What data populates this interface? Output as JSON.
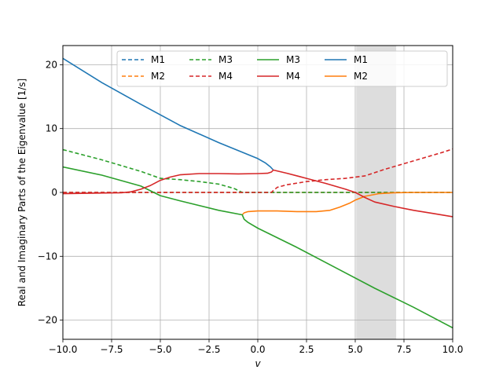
{
  "chart_data": {
    "type": "line",
    "xlabel": "v",
    "ylabel": "Real and Imaginary Parts of the Eigenvalue [1/s]",
    "xlim": [
      -10,
      10
    ],
    "ylim": [
      -23,
      23
    ],
    "xticks": [
      -10,
      -7.5,
      -5,
      -2.5,
      0,
      2.5,
      5,
      7.5,
      10
    ],
    "xtick_labels": [
      "−10.0",
      "−7.5",
      "−5.0",
      "−2.5",
      "0.0",
      "2.5",
      "5.0",
      "7.5",
      "10.0"
    ],
    "yticks": [
      -20,
      -10,
      0,
      10,
      20
    ],
    "ytick_labels": [
      "−20",
      "−10",
      "0",
      "10",
      "20"
    ],
    "grid": true,
    "shaded_region": [
      5.05,
      7.1
    ],
    "legend": {
      "placement": "top-right",
      "columns": 5,
      "entries": [
        {
          "label": "M1",
          "color": "#1f77b4",
          "style": "dashed"
        },
        {
          "label": "M2",
          "color": "#ff7f0e",
          "style": "dashed"
        },
        {
          "label": "M3",
          "color": "#2ca02c",
          "style": "dashed"
        },
        {
          "label": "M4",
          "color": "#d62728",
          "style": "dashed"
        },
        {
          "label": "M3",
          "color": "#2ca02c",
          "style": "solid"
        },
        {
          "label": "M4",
          "color": "#d62728",
          "style": "solid"
        },
        {
          "label": "M1",
          "color": "#1f77b4",
          "style": "solid"
        },
        {
          "label": "M2",
          "color": "#ff7f0e",
          "style": "solid"
        }
      ]
    },
    "series": [
      {
        "name": "M1",
        "part": "imaginary",
        "color": "#1f77b4",
        "style": "dashed",
        "x": [
          -10,
          10
        ],
        "y": [
          0,
          0
        ]
      },
      {
        "name": "M2",
        "part": "imaginary",
        "color": "#ff7f0e",
        "style": "dashed",
        "x": [
          -10,
          10
        ],
        "y": [
          0,
          0
        ]
      },
      {
        "name": "M3",
        "part": "imaginary",
        "color": "#2ca02c",
        "style": "dashed",
        "x": [
          -10,
          -8,
          -6,
          -5,
          -4,
          -3,
          -2,
          -1.2,
          -0.8,
          10
        ],
        "y": [
          6.7,
          5.1,
          3.3,
          2.2,
          2.0,
          1.7,
          1.3,
          0.6,
          0,
          0
        ]
      },
      {
        "name": "M4",
        "part": "imaginary",
        "color": "#d62728",
        "style": "dashed",
        "x": [
          -10,
          0.7,
          0.8,
          1.0,
          1.5,
          2.5,
          3.5,
          4.5,
          5.0,
          5.5,
          6.5,
          7.5,
          8.5,
          9.5,
          10
        ],
        "y": [
          0,
          0,
          0.3,
          0.8,
          1.2,
          1.7,
          2.0,
          2.2,
          2.4,
          2.6,
          3.6,
          4.5,
          5.4,
          6.3,
          6.8
        ]
      },
      {
        "name": "M1",
        "part": "real",
        "color": "#1f77b4",
        "style": "solid",
        "x": [
          -10,
          -8,
          -6,
          -4,
          -2,
          0,
          0.4,
          0.65,
          0.8
        ],
        "y": [
          21.0,
          17.2,
          13.8,
          10.5,
          7.8,
          5.3,
          4.6,
          4.0,
          3.5
        ]
      },
      {
        "name": "M2",
        "part": "real",
        "color": "#ff7f0e",
        "style": "solid",
        "x": [
          -0.8,
          -0.7,
          -0.5,
          0,
          1,
          2,
          3,
          3.7,
          4.2,
          4.7,
          5.0,
          5.5,
          6.2,
          7.0,
          8,
          10
        ],
        "y": [
          -3.5,
          -3.2,
          -3.0,
          -2.9,
          -2.9,
          -3.0,
          -3.0,
          -2.8,
          -2.3,
          -1.7,
          -1.2,
          -0.6,
          -0.2,
          -0.05,
          0,
          0
        ]
      },
      {
        "name": "M3",
        "part": "real",
        "color": "#2ca02c",
        "style": "solid",
        "x": [
          -10,
          -8,
          -6,
          -5,
          -4,
          -2,
          -0.8,
          -0.7,
          -0.5,
          0,
          2,
          4,
          6,
          8,
          10
        ],
        "y": [
          4.0,
          2.7,
          1.0,
          -0.5,
          -1.3,
          -2.8,
          -3.5,
          -4.2,
          -4.7,
          -5.6,
          -8.6,
          -11.8,
          -15.0,
          -18.0,
          -21.2
        ]
      },
      {
        "name": "M4",
        "part": "real",
        "color": "#d62728",
        "style": "solid",
        "x": [
          -10,
          -7,
          -6.5,
          -6,
          -5.5,
          -5,
          -4.5,
          -4,
          -3,
          -2,
          -1,
          0,
          0.5,
          0.7,
          0.8,
          1.5,
          2.5,
          3.5,
          4.5,
          5.0,
          5.5,
          6.0,
          7.0,
          8.0,
          9.0,
          10.0
        ],
        "y": [
          -0.2,
          -0.05,
          0.1,
          0.5,
          1.1,
          1.9,
          2.4,
          2.75,
          2.95,
          2.95,
          2.9,
          2.95,
          3.0,
          3.2,
          3.5,
          3.0,
          2.2,
          1.4,
          0.5,
          0.0,
          -0.8,
          -1.5,
          -2.2,
          -2.8,
          -3.3,
          -3.8
        ]
      }
    ]
  }
}
